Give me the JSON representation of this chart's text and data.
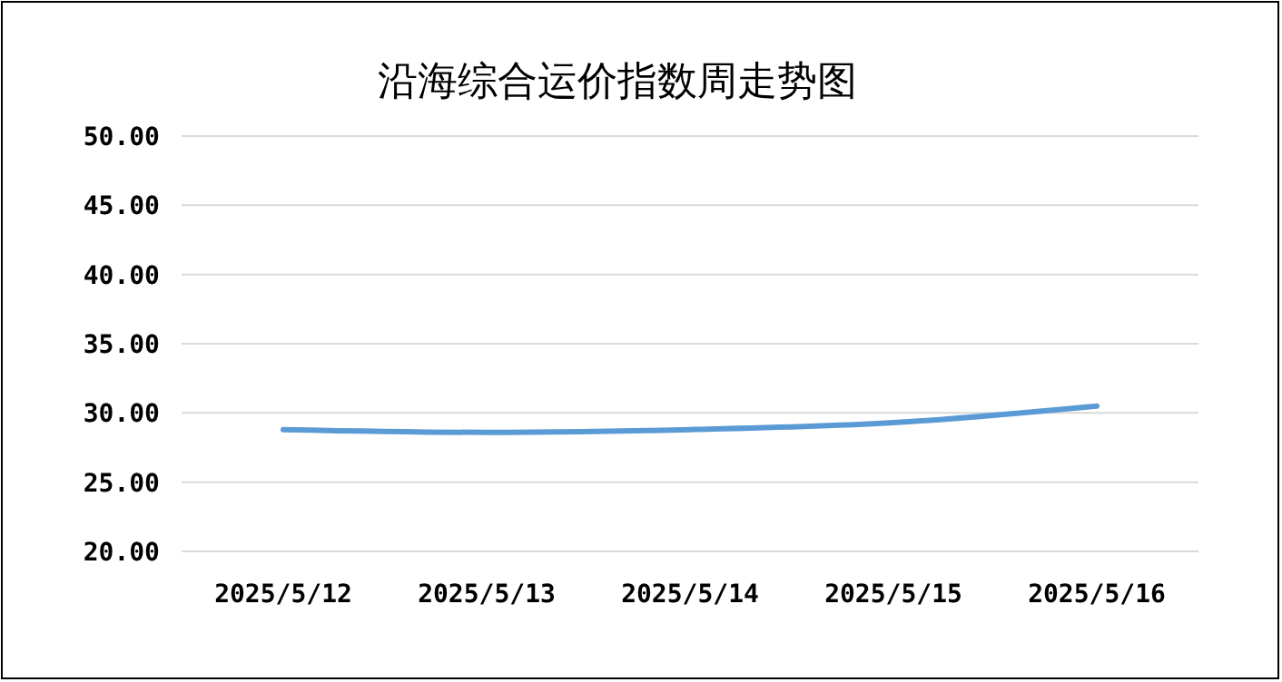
{
  "chart_data": {
    "type": "line",
    "title": "沿海综合运价指数周走势图",
    "categories": [
      "2025/5/12",
      "2025/5/13",
      "2025/5/14",
      "2025/5/15",
      "2025/5/16"
    ],
    "series": [
      {
        "color": "#5b9bd5",
        "values": [
          28.8,
          28.6,
          28.8,
          29.3,
          30.5
        ]
      }
    ],
    "ylim": [
      20,
      50
    ],
    "yticks": [
      {
        "value": 20,
        "label": "20.00"
      },
      {
        "value": 25,
        "label": "25.00"
      },
      {
        "value": 30,
        "label": "30.00"
      },
      {
        "value": 35,
        "label": "35.00"
      },
      {
        "value": 40,
        "label": "40.00"
      },
      {
        "value": 45,
        "label": "45.00"
      },
      {
        "value": 50,
        "label": "50.00"
      }
    ],
    "grid": "y",
    "marker": "none",
    "line_style": "solid"
  }
}
